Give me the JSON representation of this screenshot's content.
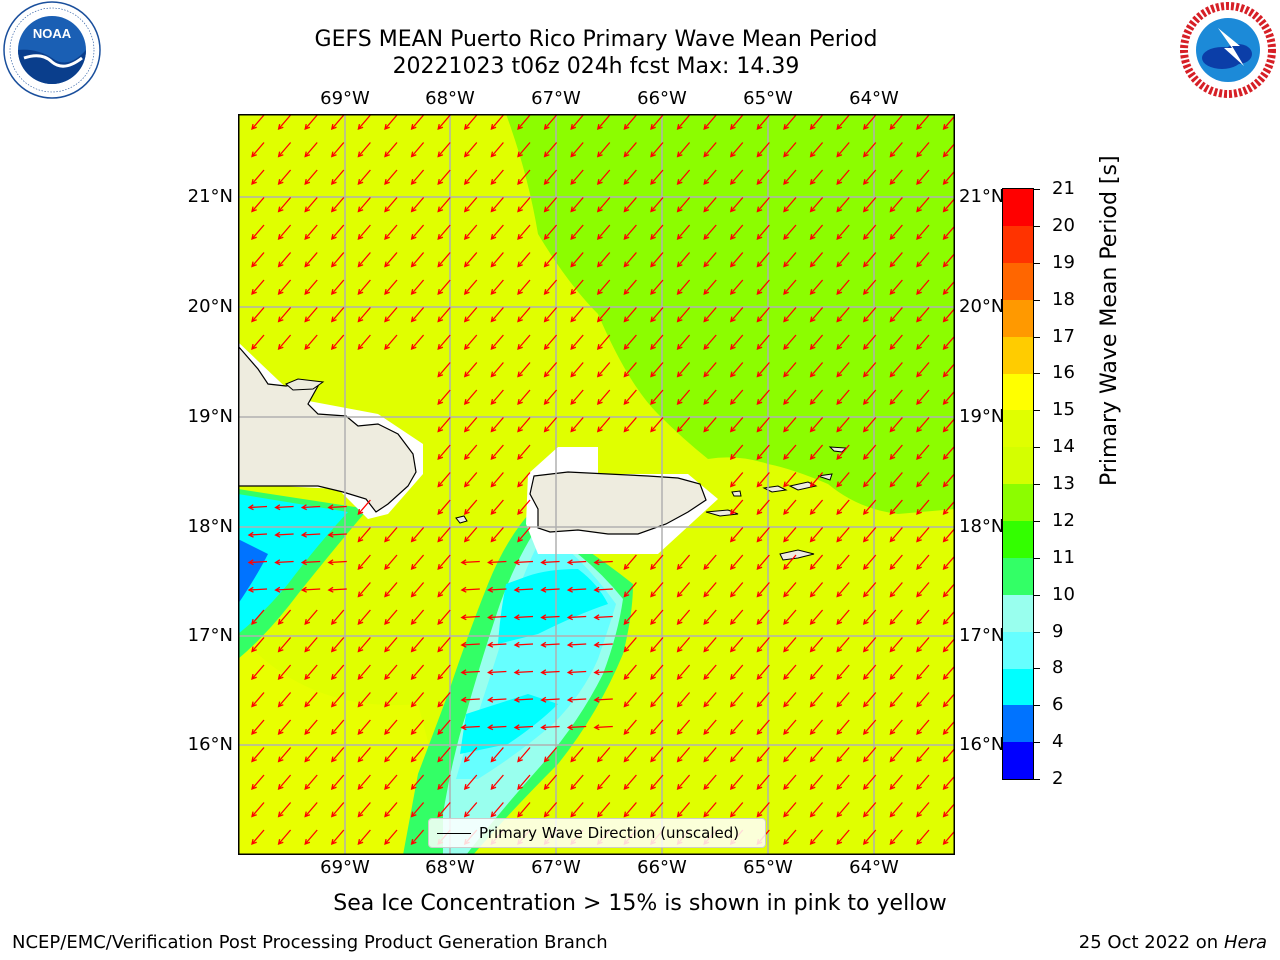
{
  "title": {
    "line1": "GEFS MEAN Puerto Rico Primary Wave Mean Period",
    "line2": "20221023 t06z 024h fcst   Max: 14.39"
  },
  "logos": {
    "left": "NOAA",
    "right": "NATIONAL WEATHER SERVICE"
  },
  "map": {
    "lon_labels": [
      "69°W",
      "68°W",
      "67°W",
      "66°W",
      "65°W",
      "64°W"
    ],
    "lat_labels": [
      "21°N",
      "20°N",
      "19°N",
      "18°N",
      "17°N",
      "16°N"
    ],
    "land_color": "#eeecdf",
    "arrow_color": "#ff0000",
    "grid_color": "#b0b0b0"
  },
  "colorbar": {
    "label": "Primary Wave Mean Period [s]",
    "ticks": [
      "2",
      "4",
      "6",
      "8",
      "9",
      "10",
      "11",
      "12",
      "13",
      "14",
      "15",
      "16",
      "17",
      "18",
      "19",
      "20",
      "21"
    ],
    "colors": [
      "#0000ff",
      "#0073ff",
      "#00ffff",
      "#66ffff",
      "#99ffee",
      "#33ff66",
      "#33ff00",
      "#8cfd00",
      "#d4ff00",
      "#e0ff00",
      "#ffff00",
      "#ffcc00",
      "#ff9900",
      "#ff6600",
      "#ff3300",
      "#ff0000"
    ]
  },
  "legend": {
    "text": "Primary Wave Direction (unscaled)"
  },
  "footer": {
    "note": "Sea Ice Concentration > 15% is shown in pink to yellow",
    "left": "NCEP/EMC/Verification Post Processing Product Generation Branch",
    "right_date": "25 Oct 2022 on ",
    "right_host": "Hera"
  }
}
